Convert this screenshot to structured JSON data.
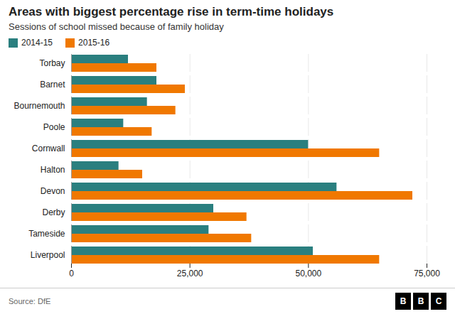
{
  "chart_data": {
    "type": "bar",
    "orientation": "horizontal",
    "title": "Areas with biggest percentage rise in term-time holidays",
    "subtitle": "Sessions of school missed because of family holiday",
    "categories": [
      "Torbay",
      "Barnet",
      "Bournemouth",
      "Poole",
      "Cornwall",
      "Halton",
      "Devon",
      "Derby",
      "Tameside",
      "Liverpool"
    ],
    "series": [
      {
        "name": "2014-15",
        "color": "#2a7f7f",
        "values": [
          12000,
          18000,
          16000,
          11000,
          50000,
          10000,
          56000,
          30000,
          29000,
          51000
        ]
      },
      {
        "name": "2015-16",
        "color": "#f07800",
        "values": [
          18000,
          24000,
          22000,
          17000,
          65000,
          15000,
          72000,
          37000,
          38000,
          65000
        ]
      }
    ],
    "xlim": [
      0,
      75000
    ],
    "xticks": [
      0,
      {
        "value": 25000,
        "label": "25,000"
      },
      {
        "value": 50000,
        "label": "50,000"
      },
      {
        "value": 75000,
        "label": "75,000"
      }
    ],
    "grid": true,
    "legend": "upper left",
    "source": "Source: DfE",
    "logo": [
      "B",
      "B",
      "C"
    ]
  }
}
